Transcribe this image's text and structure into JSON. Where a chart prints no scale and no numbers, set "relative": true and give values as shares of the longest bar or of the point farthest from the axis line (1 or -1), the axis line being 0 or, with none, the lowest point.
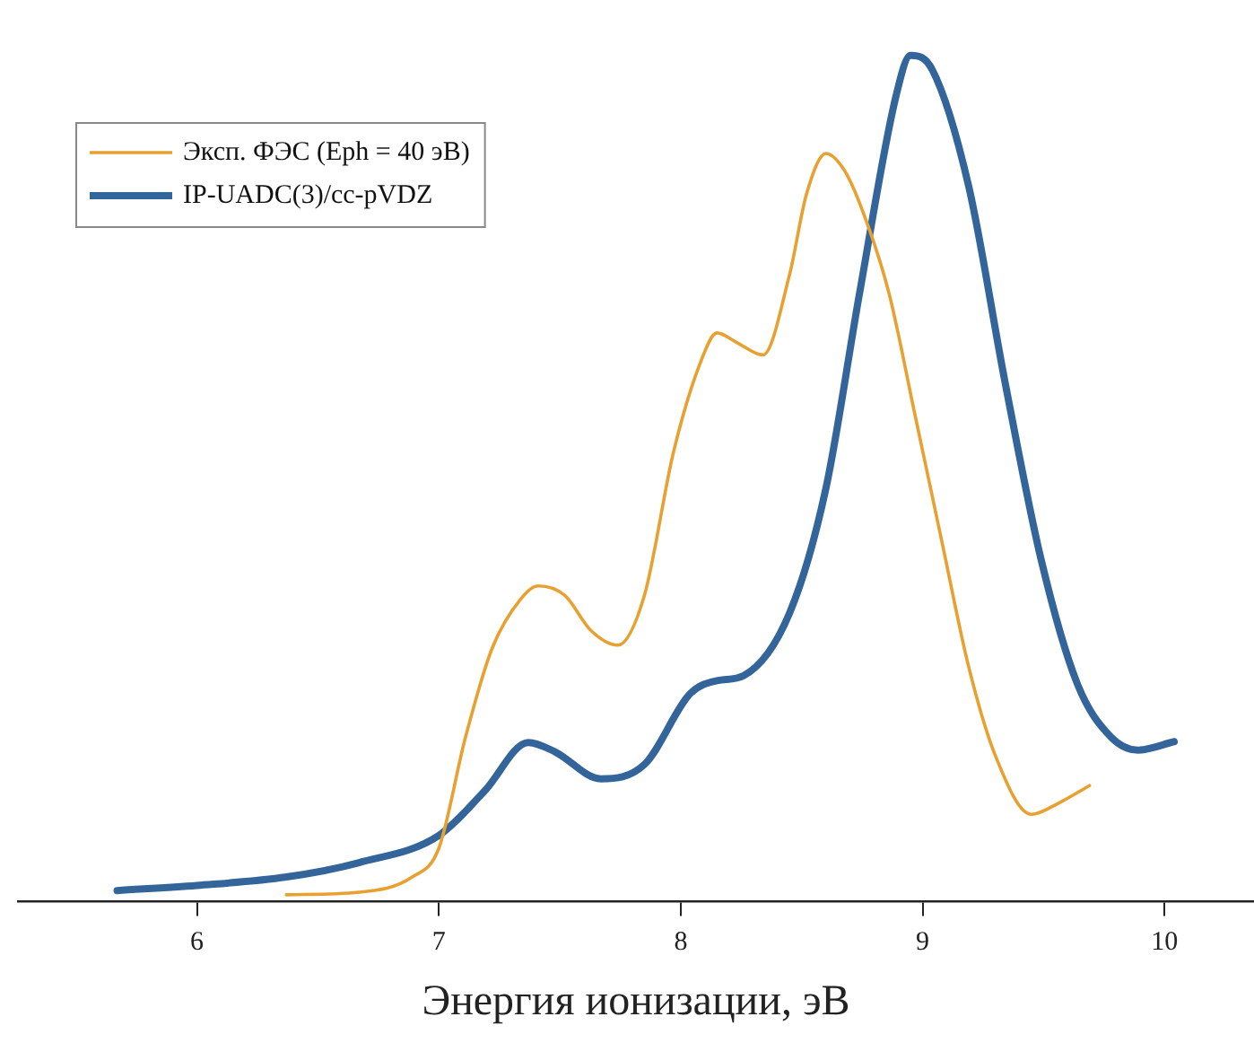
{
  "chart_data": {
    "type": "line",
    "relative": true,
    "xlabel": "Энергия ионизации, эВ",
    "xlim": [
      5.26,
      10.37
    ],
    "xticks": [
      6,
      7,
      8,
      9,
      10
    ],
    "tick_labels": "x",
    "grid": false,
    "legend": "top left",
    "marker": "none",
    "line_style": "solid",
    "series": [
      {
        "name": "Эксп. ФЭС (Eph = 40 эВ)",
        "color": "#e8a030",
        "x": [
          6.37,
          6.67,
          6.89,
          7.0,
          7.11,
          7.22,
          7.34,
          7.41,
          7.52,
          7.63,
          7.74,
          7.85,
          7.97,
          8.08,
          8.15,
          8.23,
          8.34,
          8.45,
          8.52,
          8.6,
          8.67,
          8.74,
          8.86,
          8.97,
          9.08,
          9.19,
          9.3,
          9.45,
          9.56,
          9.69
        ],
        "values": [
          0.008,
          0.011,
          0.029,
          0.063,
          0.194,
          0.299,
          0.358,
          0.373,
          0.362,
          0.32,
          0.303,
          0.362,
          0.531,
          0.636,
          0.672,
          0.661,
          0.646,
          0.741,
          0.836,
          0.884,
          0.867,
          0.825,
          0.72,
          0.573,
          0.425,
          0.278,
          0.173,
          0.103,
          0.116,
          0.137
        ]
      },
      {
        "name": "IP-UADC(3)/cc-pVDZ",
        "color": "#33659b",
        "x": [
          5.67,
          6.0,
          6.37,
          6.67,
          7.0,
          7.19,
          7.37,
          7.48,
          7.67,
          7.85,
          8.04,
          8.15,
          8.26,
          8.45,
          8.6,
          8.74,
          8.89,
          8.95,
          9.04,
          9.19,
          9.34,
          9.49,
          9.64,
          9.78,
          9.89,
          10.04
        ],
        "values": [
          0.013,
          0.019,
          0.029,
          0.046,
          0.078,
          0.131,
          0.188,
          0.177,
          0.145,
          0.162,
          0.246,
          0.261,
          0.267,
          0.341,
          0.488,
          0.72,
          0.952,
          1,
          0.983,
          0.846,
          0.615,
          0.404,
          0.257,
          0.194,
          0.179,
          0.189
        ]
      }
    ]
  }
}
